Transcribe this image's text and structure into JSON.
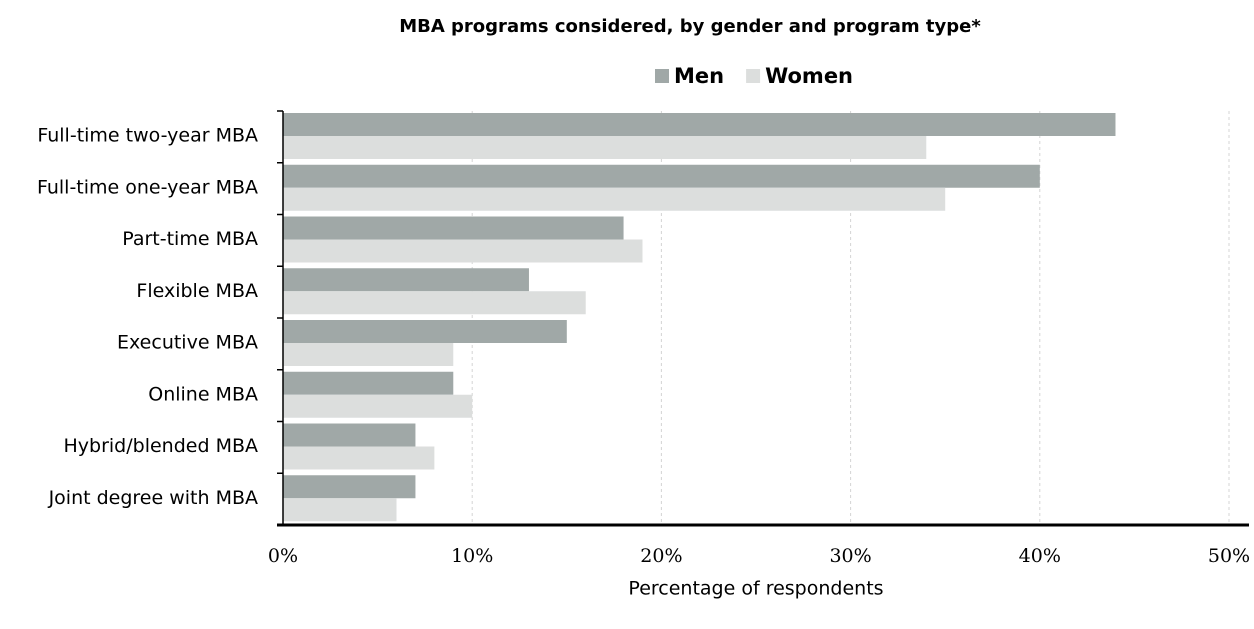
{
  "chart_data": {
    "type": "hbar",
    "title": "MBA programs considered, by gender and program type*",
    "x_label": "Percentage of respondents",
    "categories": [
      "Full-time two-year MBA",
      "Full-time one-year MBA",
      "Part-time MBA",
      "Flexible MBA",
      "Executive MBA",
      "Online MBA",
      "Hybrid/blended MBA",
      "Joint degree with MBA"
    ],
    "series": [
      {
        "name": "Men",
        "color": "#a0a8a7",
        "values": [
          44,
          40,
          18,
          13,
          15,
          9,
          7,
          7
        ]
      },
      {
        "name": "Women",
        "color": "#dcdedd",
        "values": [
          34,
          35,
          19,
          16,
          9,
          10,
          8,
          6
        ]
      }
    ],
    "xlim": [
      0,
      50
    ],
    "xticks": [
      {
        "value": 0,
        "label": "0%"
      },
      {
        "value": 10,
        "label": "10%"
      },
      {
        "value": 20,
        "label": "20%"
      },
      {
        "value": 30,
        "label": "30%"
      },
      {
        "value": 40,
        "label": "40%"
      },
      {
        "value": 50,
        "label": "50%"
      }
    ],
    "grid": true,
    "legend": "top"
  }
}
